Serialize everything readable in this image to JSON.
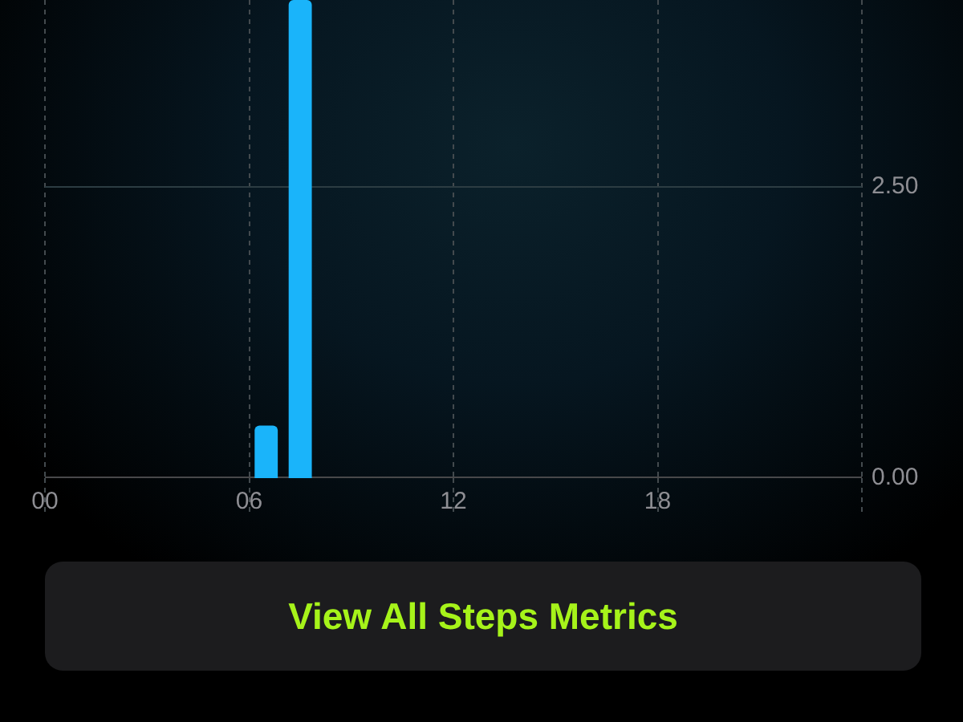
{
  "chart_data": {
    "type": "bar",
    "x": [
      6.5,
      7.5
    ],
    "values": [
      0.45,
      4.1
    ],
    "color": "#1ab4fa",
    "xlim": [
      0,
      24
    ],
    "xticks": [
      {
        "value": 0,
        "label": "00"
      },
      {
        "value": 6,
        "label": "06"
      },
      {
        "value": 12,
        "label": "12"
      },
      {
        "value": 18,
        "label": "18"
      },
      {
        "value": 24,
        "label": null
      }
    ],
    "ylim": [
      0,
      4.1
    ],
    "yticks": [
      {
        "value": 0,
        "label": "0.00"
      },
      {
        "value": 2.5,
        "label": "2.50"
      }
    ],
    "grid": "x",
    "ref_lines": [
      {
        "axis": "y",
        "value": 2.5,
        "color": "#2c3c42"
      }
    ],
    "annotations": [
      "View All Steps Metrics"
    ]
  }
}
